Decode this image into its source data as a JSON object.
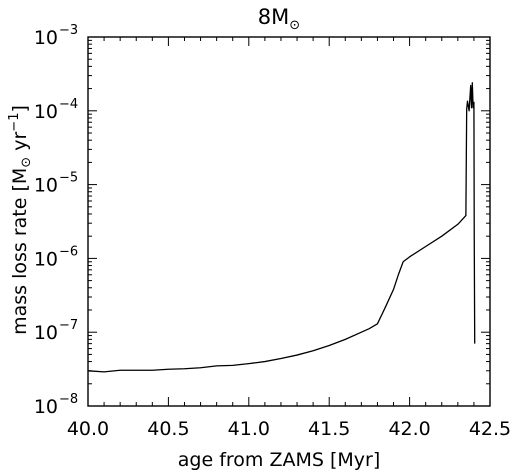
{
  "chart_data": {
    "type": "line",
    "title": {
      "main": "8M",
      "subscript": "⊙"
    },
    "xlabel": "age from ZAMS [Myr]",
    "ylabel": {
      "pre": "mass loss rate [M",
      "sub": "⊙",
      "mid": " yr",
      "sup": "−1",
      "post": "]"
    },
    "x_scale": "linear",
    "y_scale": "log",
    "xlim": [
      40.0,
      42.5
    ],
    "ylim": [
      1e-08,
      0.001
    ],
    "x_ticks": [
      40.0,
      40.5,
      41.0,
      41.5,
      42.0,
      42.5
    ],
    "x_tick_labels": [
      "40.0",
      "40.5",
      "41.0",
      "41.5",
      "42.0",
      "42.5"
    ],
    "y_ticks": [
      {
        "value": 1e-08,
        "base": "10",
        "exp": "−8"
      },
      {
        "value": 1e-07,
        "base": "10",
        "exp": "−7"
      },
      {
        "value": 1e-06,
        "base": "10",
        "exp": "−6"
      },
      {
        "value": 1e-05,
        "base": "10",
        "exp": "−5"
      },
      {
        "value": 0.0001,
        "base": "10",
        "exp": "−4"
      },
      {
        "value": 0.001,
        "base": "10",
        "exp": "−3"
      }
    ],
    "grid": false,
    "legend": "none",
    "series": [
      {
        "color": "#000000",
        "x": [
          40.0,
          40.1,
          40.2,
          40.3,
          40.4,
          40.5,
          40.6,
          40.7,
          40.8,
          40.9,
          41.0,
          41.1,
          41.2,
          41.3,
          41.4,
          41.5,
          41.6,
          41.7,
          41.75,
          41.8,
          41.85,
          41.9,
          41.93,
          41.96,
          42.0,
          42.1,
          42.2,
          42.3,
          42.35,
          42.355,
          42.36,
          42.37,
          42.38,
          42.385,
          42.39,
          42.395,
          42.4,
          42.402,
          42.405
        ],
        "y": [
          3e-08,
          2.9e-08,
          3.05e-08,
          3.05e-08,
          3.05e-08,
          3.15e-08,
          3.2e-08,
          3.3e-08,
          3.5e-08,
          3.55e-08,
          3.75e-08,
          4e-08,
          4.4e-08,
          4.9e-08,
          5.6e-08,
          6.6e-08,
          8e-08,
          1e-07,
          1.12e-07,
          1.3e-07,
          2.2e-07,
          3.8e-07,
          6e-07,
          9e-07,
          1.05e-06,
          1.45e-06,
          2e-06,
          2.9e-06,
          3.8e-06,
          0.000105,
          0.000135,
          0.0001,
          0.00022,
          0.00011,
          0.00024,
          0.00011,
          0.00013,
          2e-06,
          7e-08
        ]
      }
    ]
  }
}
